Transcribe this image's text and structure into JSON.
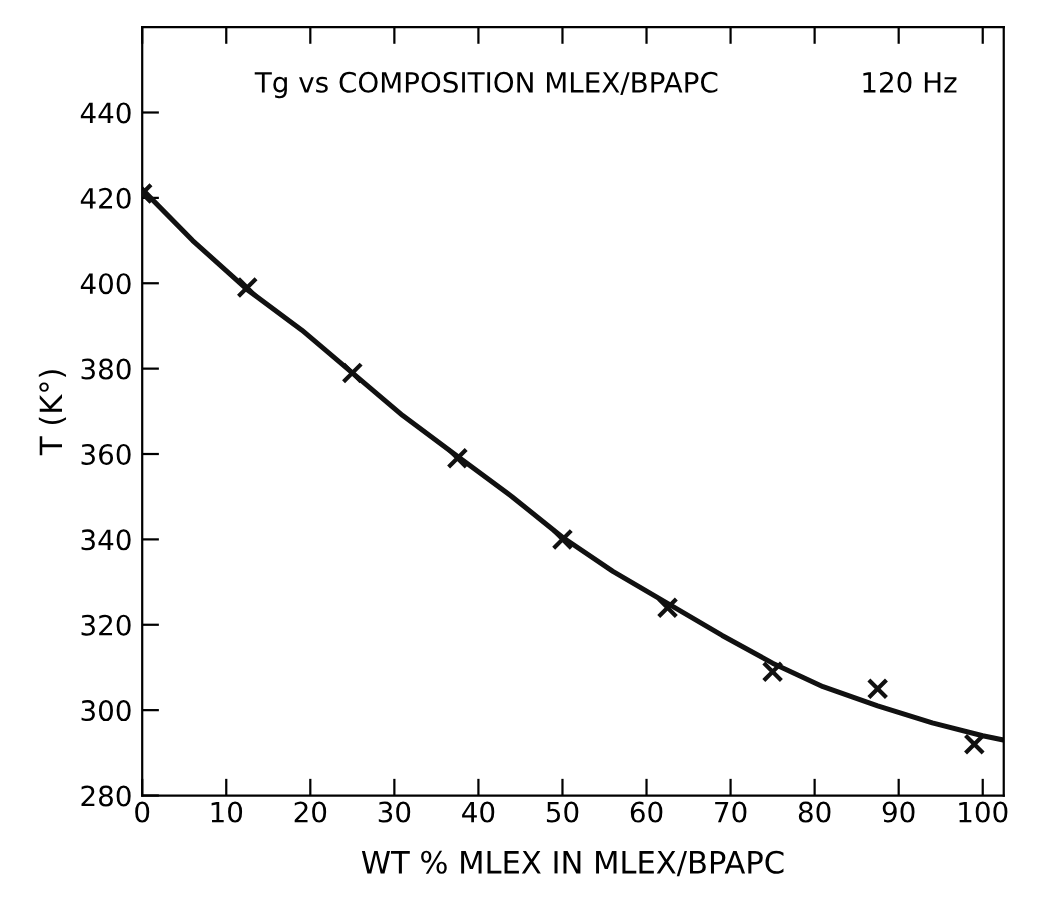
{
  "chart_data": {
    "type": "scatter",
    "title": "Tg vs COMPOSITION MLEX/BPAPC",
    "annotations": [
      "120 Hz"
    ],
    "xlabel": "WT % MLEX IN MLEX/BPAPC",
    "ylabel": "T (K°)",
    "xlim": [
      0,
      102.5
    ],
    "ylim": [
      280,
      460
    ],
    "xticks": [
      0,
      10,
      20,
      30,
      40,
      50,
      60,
      70,
      80,
      90,
      100
    ],
    "yticks": [
      280,
      300,
      320,
      340,
      360,
      380,
      400,
      420,
      440
    ],
    "grid": false,
    "marker": "cross",
    "series": [
      {
        "color": "#111111",
        "x": [
          0,
          12.5,
          25,
          37.5,
          50,
          62.5,
          75,
          87.5,
          99
        ],
        "values": [
          421,
          399,
          379,
          359,
          340,
          324,
          309,
          305,
          292
        ]
      },
      {
        "type": "line",
        "color": "#111111",
        "marker": "none",
        "line_style": "solid",
        "x": [
          0,
          6,
          12.5,
          19,
          25,
          31,
          37.5,
          44,
          50,
          56,
          62.5,
          69,
          75,
          81,
          87.5,
          94,
          100,
          102.5
        ],
        "values": [
          422,
          410,
          398.5,
          389,
          379,
          369,
          359.5,
          350,
          340.5,
          332.5,
          325,
          317.5,
          311,
          305.5,
          301,
          297,
          294,
          293
        ]
      }
    ]
  }
}
